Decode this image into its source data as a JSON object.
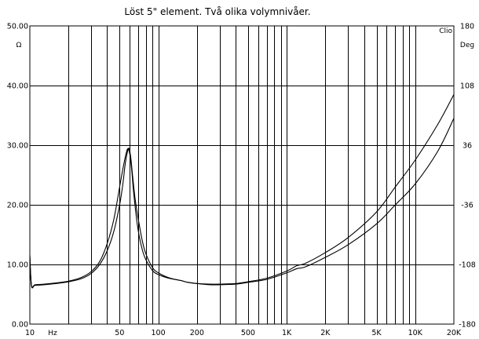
{
  "chart_data": {
    "type": "line",
    "title": "Löst 5\" element. Två olika volymnivåer.",
    "watermark": "Clio",
    "x_axis": {
      "scale": "log",
      "range": [
        10,
        20000
      ],
      "unit_label": "Hz",
      "tick_labels": [
        {
          "value": 10,
          "label": "10"
        },
        {
          "value": 50,
          "label": "50"
        },
        {
          "value": 100,
          "label": "100"
        },
        {
          "value": 200,
          "label": "200"
        },
        {
          "value": 500,
          "label": "500"
        },
        {
          "value": 1000,
          "label": "1K"
        },
        {
          "value": 2000,
          "label": "2K"
        },
        {
          "value": 5000,
          "label": "5K"
        },
        {
          "value": 10000,
          "label": "10K"
        },
        {
          "value": 20000,
          "label": "20K"
        }
      ]
    },
    "y_axis_left": {
      "unit_label": "Ω",
      "range": [
        0,
        50
      ],
      "ticks": [
        {
          "value": 0,
          "label": "0.00"
        },
        {
          "value": 10,
          "label": "10.00"
        },
        {
          "value": 20,
          "label": "20.00"
        },
        {
          "value": 30,
          "label": "30.00"
        },
        {
          "value": 40,
          "label": "40.00"
        },
        {
          "value": 50,
          "label": "50.00"
        }
      ]
    },
    "y_axis_right": {
      "unit_label": "Deg",
      "range": [
        -180,
        180
      ],
      "ticks": [
        {
          "value": -180,
          "label": "-180"
        },
        {
          "value": -108,
          "label": "-108"
        },
        {
          "value": -36,
          "label": "-36"
        },
        {
          "value": 36,
          "label": "36"
        },
        {
          "value": 108,
          "label": "108"
        },
        {
          "value": 180,
          "label": "180"
        }
      ]
    },
    "grid": true,
    "series": [
      {
        "x": [
          10,
          10.3,
          11,
          13,
          16,
          20,
          25,
          30,
          35,
          40,
          45,
          50,
          53,
          56,
          58,
          60,
          62,
          64,
          67,
          70,
          75,
          80,
          90,
          100,
          120,
          150,
          170,
          200,
          250,
          300,
          400,
          500,
          700,
          1000,
          1200,
          1400,
          2000,
          3000,
          5000,
          7000,
          10000,
          15000,
          20000
        ],
        "y": [
          11.5,
          6.5,
          6.6,
          6.7,
          6.9,
          7.2,
          7.8,
          8.8,
          10.5,
          13.5,
          17.5,
          23.0,
          26.0,
          28.5,
          29.4,
          28.5,
          26.0,
          22.5,
          18.5,
          15.5,
          12.5,
          10.8,
          9.0,
          8.3,
          7.7,
          7.3,
          7.0,
          6.8,
          6.7,
          6.7,
          6.8,
          7.1,
          7.7,
          8.9,
          9.8,
          10.2,
          12.0,
          14.5,
          18.8,
          23.0,
          27.5,
          33.5,
          38.5
        ]
      },
      {
        "x": [
          10,
          10.3,
          11,
          13,
          16,
          20,
          25,
          30,
          35,
          40,
          45,
          50,
          53,
          55,
          57,
          59,
          61,
          63,
          66,
          70,
          75,
          80,
          90,
          100,
          120,
          150,
          170,
          200,
          250,
          300,
          400,
          500,
          700,
          1000,
          1200,
          1400,
          2000,
          3000,
          5000,
          7000,
          10000,
          15000,
          20000
        ],
        "y": [
          11.5,
          6.4,
          6.5,
          6.6,
          6.8,
          7.1,
          7.6,
          8.5,
          10.0,
          12.3,
          15.5,
          20.0,
          23.5,
          26.5,
          28.5,
          29.5,
          28.0,
          25.0,
          21.0,
          17.5,
          14.0,
          11.8,
          9.5,
          8.6,
          7.8,
          7.3,
          7.0,
          6.8,
          6.6,
          6.6,
          6.7,
          7.0,
          7.5,
          8.6,
          9.3,
          9.6,
          11.2,
          13.3,
          16.8,
          20.0,
          23.5,
          29.0,
          34.5
        ]
      }
    ]
  }
}
